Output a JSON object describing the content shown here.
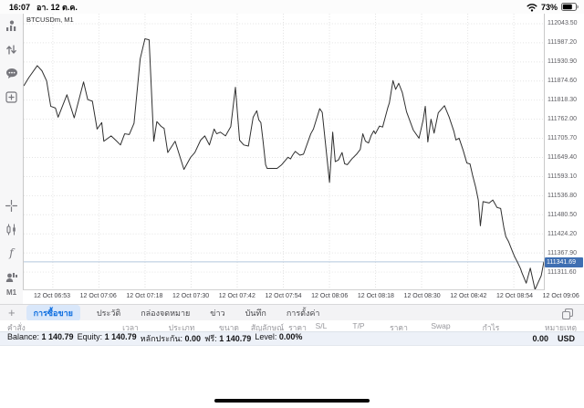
{
  "status_bar": {
    "time": "16:07",
    "date": "อา. 12 ต.ค.",
    "battery_percent": "73%"
  },
  "sidebar": {
    "timeframe_label": "M1",
    "indicators_glyph": "f"
  },
  "chart": {
    "symbol_label": "BTCUSDm, M1"
  },
  "chart_data": {
    "type": "line",
    "title": "BTCUSDm, M1",
    "symbol": "BTCUSDm",
    "timeframe": "M1",
    "current_price": 111341.69,
    "ylim": [
      111260,
      112070
    ],
    "grid": true,
    "y_ticks": [
      112043.5,
      111987.2,
      111930.9,
      111874.6,
      111818.3,
      111762.0,
      111705.7,
      111649.4,
      111593.1,
      111536.8,
      111480.5,
      111424.2,
      111367.9,
      111311.6
    ],
    "x_ticks": [
      "12 Oct 06:53",
      "12 Oct 07:06",
      "12 Oct 07:18",
      "12 Oct 07:30",
      "12 Oct 07:42",
      "12 Oct 07:54",
      "12 Oct 08:06",
      "12 Oct 08:18",
      "12 Oct 08:30",
      "12 Oct 08:42",
      "12 Oct 08:54",
      "12 Oct 09:06"
    ],
    "series": [
      {
        "name": "BTCUSDm M1 close",
        "points": [
          [
            0,
            111860
          ],
          [
            0.01,
            111885
          ],
          [
            0.026,
            111920
          ],
          [
            0.035,
            111905
          ],
          [
            0.044,
            111875
          ],
          [
            0.052,
            111800
          ],
          [
            0.061,
            111795
          ],
          [
            0.066,
            111768
          ],
          [
            0.083,
            111834
          ],
          [
            0.097,
            111766
          ],
          [
            0.115,
            111872
          ],
          [
            0.123,
            111820
          ],
          [
            0.132,
            111815
          ],
          [
            0.141,
            111733
          ],
          [
            0.15,
            111752
          ],
          [
            0.154,
            111697
          ],
          [
            0.168,
            111713
          ],
          [
            0.177,
            111700
          ],
          [
            0.186,
            111686
          ],
          [
            0.194,
            111719
          ],
          [
            0.203,
            111717
          ],
          [
            0.212,
            111750
          ],
          [
            0.224,
            111940
          ],
          [
            0.233,
            111999
          ],
          [
            0.241,
            111996
          ],
          [
            0.25,
            111697
          ],
          [
            0.256,
            111755
          ],
          [
            0.264,
            111741
          ],
          [
            0.27,
            111735
          ],
          [
            0.277,
            111664
          ],
          [
            0.291,
            111697
          ],
          [
            0.308,
            111614
          ],
          [
            0.321,
            111650
          ],
          [
            0.329,
            111664
          ],
          [
            0.34,
            111700
          ],
          [
            0.348,
            111713
          ],
          [
            0.357,
            111686
          ],
          [
            0.366,
            111733
          ],
          [
            0.371,
            111719
          ],
          [
            0.378,
            111724
          ],
          [
            0.388,
            111713
          ],
          [
            0.398,
            111740
          ],
          [
            0.407,
            111856
          ],
          [
            0.415,
            111700
          ],
          [
            0.423,
            111686
          ],
          [
            0.432,
            111683
          ],
          [
            0.441,
            111768
          ],
          [
            0.448,
            111787
          ],
          [
            0.452,
            111760
          ],
          [
            0.456,
            111752
          ],
          [
            0.46,
            111700
          ],
          [
            0.465,
            111628
          ],
          [
            0.468,
            111617
          ],
          [
            0.487,
            111617
          ],
          [
            0.496,
            111628
          ],
          [
            0.508,
            111650
          ],
          [
            0.513,
            111645
          ],
          [
            0.517,
            111656
          ],
          [
            0.522,
            111667
          ],
          [
            0.531,
            111656
          ],
          [
            0.538,
            111659
          ],
          [
            0.552,
            111719
          ],
          [
            0.557,
            111733
          ],
          [
            0.569,
            111793
          ],
          [
            0.574,
            111782
          ],
          [
            0.588,
            111576
          ],
          [
            0.594,
            111724
          ],
          [
            0.599,
            111637
          ],
          [
            0.605,
            111642
          ],
          [
            0.612,
            111664
          ],
          [
            0.617,
            111631
          ],
          [
            0.622,
            111628
          ],
          [
            0.631,
            111645
          ],
          [
            0.64,
            111659
          ],
          [
            0.647,
            111673
          ],
          [
            0.652,
            111719
          ],
          [
            0.657,
            111697
          ],
          [
            0.663,
            111692
          ],
          [
            0.668,
            111714
          ],
          [
            0.673,
            111728
          ],
          [
            0.676,
            111719
          ],
          [
            0.684,
            111742
          ],
          [
            0.69,
            111739
          ],
          [
            0.7,
            111796
          ],
          [
            0.703,
            111810
          ],
          [
            0.71,
            111876
          ],
          [
            0.715,
            111850
          ],
          [
            0.721,
            111868
          ],
          [
            0.728,
            111840
          ],
          [
            0.736,
            111784
          ],
          [
            0.749,
            111730
          ],
          [
            0.76,
            111706
          ],
          [
            0.768,
            111760
          ],
          [
            0.772,
            111800
          ],
          [
            0.777,
            111695
          ],
          [
            0.783,
            111762
          ],
          [
            0.789,
            111721
          ],
          [
            0.797,
            111781
          ],
          [
            0.809,
            111802
          ],
          [
            0.818,
            111768
          ],
          [
            0.827,
            111727
          ],
          [
            0.831,
            111701
          ],
          [
            0.837,
            111706
          ],
          [
            0.845,
            111670
          ],
          [
            0.852,
            111633
          ],
          [
            0.858,
            111630
          ],
          [
            0.863,
            111597
          ],
          [
            0.869,
            111561
          ],
          [
            0.874,
            111524
          ],
          [
            0.878,
            111448
          ],
          [
            0.883,
            111519
          ],
          [
            0.895,
            111515
          ],
          [
            0.902,
            111524
          ],
          [
            0.91,
            111502
          ],
          [
            0.917,
            111499
          ],
          [
            0.923,
            111443
          ],
          [
            0.927,
            111416
          ],
          [
            0.932,
            111402
          ],
          [
            0.939,
            111375
          ],
          [
            0.944,
            111356
          ],
          [
            0.949,
            111342
          ],
          [
            0.955,
            111322
          ],
          [
            0.958,
            111309
          ],
          [
            0.966,
            111279
          ],
          [
            0.974,
            111323
          ],
          [
            0.983,
            111260
          ],
          [
            0.995,
            111301
          ],
          [
            1,
            111342
          ]
        ]
      }
    ]
  },
  "tab_bar": {
    "add_button": "+",
    "tabs": [
      {
        "id": "trade",
        "label": "การซื้อขาย",
        "active": true
      },
      {
        "id": "history",
        "label": "ประวัติ",
        "active": false
      },
      {
        "id": "mailbox",
        "label": "กล่องจดหมาย",
        "active": false
      },
      {
        "id": "news",
        "label": "ข่าว",
        "active": false
      },
      {
        "id": "journal",
        "label": "บันทึก",
        "active": false
      },
      {
        "id": "settings",
        "label": "การตั้งค่า",
        "active": false
      }
    ]
  },
  "table": {
    "columns": [
      "คำสั่ง",
      "เวลา",
      "ประเภท",
      "ขนาด",
      "สัญลักษณ์",
      "ราคา",
      "S/L",
      "T/P",
      "ราคา",
      "Swap",
      "กำไร",
      "หมายเหตุ"
    ]
  },
  "account": {
    "items": [
      {
        "label": "Balance:",
        "value": "1 140.79"
      },
      {
        "label": "Equity:",
        "value": "1 140.79"
      },
      {
        "label": "หลักประกัน:",
        "value": "0.00"
      },
      {
        "label": "ฟรี:",
        "value": "1 140.79"
      },
      {
        "label": "Level:",
        "value": "0.00%"
      }
    ],
    "profit": "0.00",
    "currency": "USD"
  }
}
